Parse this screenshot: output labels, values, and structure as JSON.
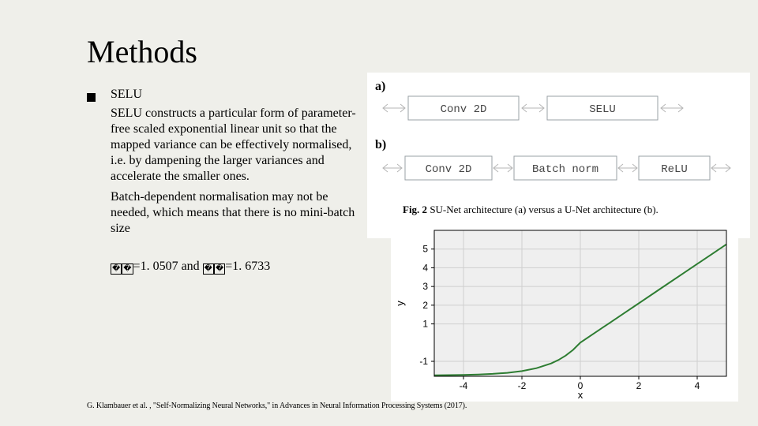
{
  "title": "Methods",
  "bullet": {
    "name": "SELU",
    "para1": "SELU constructs a particular form of parameter-free scaled exponential linear unit so that the mapped variance can be effectively normalised, i.e. by dampening the larger variances and accelerate the smaller ones.",
    "para2": "Batch-dependent normalisation may not be needed, which means that there is no mini-batch size",
    "params_mid": "1. 0507 and ",
    "params_end": "1. 6733"
  },
  "citation": "G. Klambauer et al. , \"Self-Normalizing Neural Networks,\" in Advances in Neural Information Processing Systems (2017).",
  "architecture_fig": {
    "a_label": "a)",
    "b_label": "b)",
    "row_a": [
      "Conv 2D",
      "SELU"
    ],
    "row_b": [
      "Conv 2D",
      "Batch norm",
      "ReLU"
    ],
    "box_stroke": "#9aa0a6",
    "arrow_stroke": "#b5b5b5",
    "font_family": "Courier New, monospace",
    "font_size": 14,
    "caption_bold": "Fig. 2",
    "caption_rest": " SU-Net architecture (a) versus a U-Net architecture (b)."
  },
  "selu_chart": {
    "type": "line",
    "xlim": [
      -5,
      5
    ],
    "ylim": [
      -1.8,
      6
    ],
    "xtick_values": [
      -4,
      -2,
      0,
      2,
      4
    ],
    "ytick_values": [
      -1,
      1,
      2,
      3,
      4,
      5
    ],
    "xlabel": "x",
    "ylabel": "y",
    "axis_color": "#000000",
    "grid_color": "#cfcfcf",
    "line_color": "#2e7d32",
    "line_width": 2,
    "background_color": "#efefef",
    "axis_fontsize": 12,
    "label_fontsize": 13,
    "lambda": 1.0507,
    "alpha": 1.6733,
    "x_samples": [
      -5,
      -4.5,
      -4,
      -3.5,
      -3,
      -2.5,
      -2,
      -1.5,
      -1,
      -0.75,
      -0.5,
      -0.25,
      0,
      0.5,
      1,
      1.5,
      2,
      2.5,
      3,
      3.5,
      4,
      4.5,
      5
    ]
  }
}
